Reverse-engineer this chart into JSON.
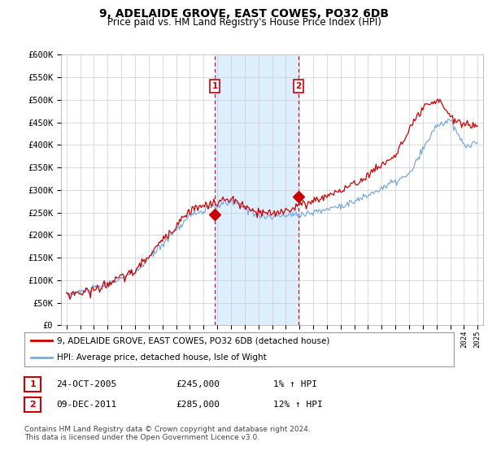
{
  "title": "9, ADELAIDE GROVE, EAST COWES, PO32 6DB",
  "subtitle": "Price paid vs. HM Land Registry's House Price Index (HPI)",
  "ylim": [
    0,
    600000
  ],
  "yticks": [
    0,
    50000,
    100000,
    150000,
    200000,
    250000,
    300000,
    350000,
    400000,
    450000,
    500000,
    550000,
    600000
  ],
  "ytick_labels": [
    "£0",
    "£50K",
    "£100K",
    "£150K",
    "£200K",
    "£250K",
    "£300K",
    "£350K",
    "£400K",
    "£450K",
    "£500K",
    "£550K",
    "£600K"
  ],
  "hpi_color": "#7aaadd",
  "sale_color": "#cc0000",
  "shade_color": "#ddeeff",
  "dashed_color": "#cc0000",
  "sale1_x": 2005.82,
  "sale2_x": 2011.92,
  "sale1_value": 245000,
  "sale2_value": 285000,
  "legend_label_red": "9, ADELAIDE GROVE, EAST COWES, PO32 6DB (detached house)",
  "legend_label_blue": "HPI: Average price, detached house, Isle of Wight",
  "table_row1": [
    "1",
    "24-OCT-2005",
    "£245,000",
    "1% ↑ HPI"
  ],
  "table_row2": [
    "2",
    "09-DEC-2011",
    "£285,000",
    "12% ↑ HPI"
  ],
  "footer": "Contains HM Land Registry data © Crown copyright and database right 2024.\nThis data is licensed under the Open Government Licence v3.0.",
  "background_color": "#ffffff",
  "grid_color": "#cccccc",
  "xlim_left": 1994.6,
  "xlim_right": 2025.4
}
